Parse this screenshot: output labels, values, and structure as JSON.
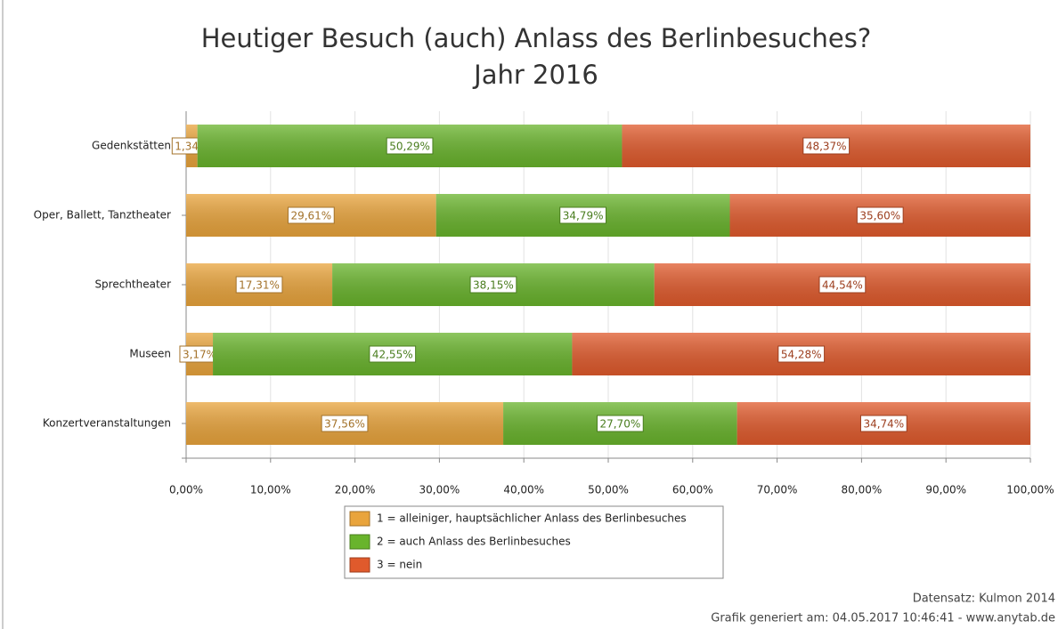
{
  "chart_data": {
    "type": "stacked-barh",
    "title": "Heutiger Besuch (auch) Anlass des Berlinbesuches?",
    "subtitle": "Jahr 2016",
    "categories": [
      "Gedenkstätten",
      "Oper, Ballett, Tanztheater",
      "Sprechtheater",
      "Museen",
      "Konzertveranstaltungen"
    ],
    "series": [
      {
        "name": "1 = alleiniger, hauptsächlicher Anlass des Berlinbesuches",
        "color": "#e9a43c",
        "values": [
          1.34,
          29.61,
          17.31,
          3.17,
          37.56
        ],
        "value_labels": [
          "1,34%",
          "29,61%",
          "17,31%",
          "3,17%",
          "37,56%"
        ]
      },
      {
        "name": "2 = auch Anlass des Berlinbesuches",
        "color": "#69b42c",
        "values": [
          50.29,
          34.79,
          38.15,
          42.55,
          27.7
        ],
        "value_labels": [
          "50,29%",
          "34,79%",
          "38,15%",
          "42,55%",
          "27,70%"
        ]
      },
      {
        "name": "3 = nein",
        "color": "#e05a2c",
        "values": [
          48.37,
          35.6,
          44.54,
          54.28,
          34.74
        ],
        "value_labels": [
          "48,37%",
          "35,60%",
          "44,54%",
          "54,28%",
          "34,74%"
        ]
      }
    ],
    "xlim": [
      0,
      100
    ],
    "xticks": [
      {
        "value": 0,
        "label": "0,00%"
      },
      {
        "value": 10,
        "label": "10,00%"
      },
      {
        "value": 20,
        "label": "20,00%"
      },
      {
        "value": 30,
        "label": "30,00%"
      },
      {
        "value": 40,
        "label": "40,00%"
      },
      {
        "value": 50,
        "label": "50,00%"
      },
      {
        "value": 60,
        "label": "60,00%"
      },
      {
        "value": 70,
        "label": "70,00%"
      },
      {
        "value": 80,
        "label": "80,00%"
      },
      {
        "value": 90,
        "label": "90,00%"
      },
      {
        "value": 100,
        "label": "100,00%"
      }
    ],
    "grid": true,
    "legend": "bottom",
    "annotations": [
      "Datensatz: Kulmon 2014",
      "Grafik generiert am: 04.05.2017 10:46:41 - www.anytab.de"
    ]
  }
}
